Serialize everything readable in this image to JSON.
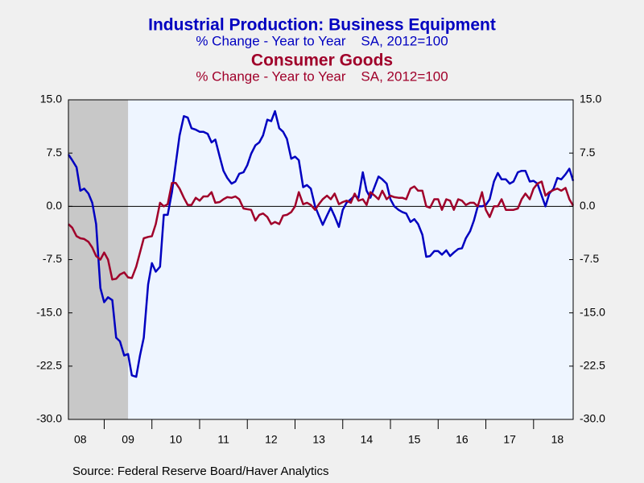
{
  "chart_data": {
    "type": "line",
    "title": "Industrial Production: Business Equipment",
    "subtitle": "% Change - Year to Year    SA, 2012=100",
    "title2": "Consumer Goods",
    "subtitle2": "% Change - Year to Year    SA, 2012=100",
    "source": "Source:  Federal Reserve Board/Haver Analytics",
    "x": [
      2008.25,
      2008.33,
      2008.42,
      2008.5,
      2008.58,
      2008.67,
      2008.75,
      2008.83,
      2008.92,
      2009.0,
      2009.08,
      2009.17,
      2009.25,
      2009.33,
      2009.42,
      2009.5,
      2009.58,
      2009.67,
      2009.75,
      2009.83,
      2009.92,
      2010.0,
      2010.08,
      2010.17,
      2010.25,
      2010.33,
      2010.42,
      2010.5,
      2010.58,
      2010.67,
      2010.75,
      2010.83,
      2010.92,
      2011.0,
      2011.08,
      2011.17,
      2011.25,
      2011.33,
      2011.42,
      2011.5,
      2011.58,
      2011.67,
      2011.75,
      2011.83,
      2011.92,
      2012.0,
      2012.08,
      2012.17,
      2012.25,
      2012.33,
      2012.42,
      2012.5,
      2012.58,
      2012.67,
      2012.75,
      2012.83,
      2012.92,
      2013.0,
      2013.08,
      2013.17,
      2013.25,
      2013.33,
      2013.42,
      2013.5,
      2013.58,
      2013.67,
      2013.75,
      2013.83,
      2013.92,
      2014.0,
      2014.08,
      2014.17,
      2014.25,
      2014.33,
      2014.42,
      2014.5,
      2014.58,
      2014.67,
      2014.75,
      2014.83,
      2014.92,
      2015.0,
      2015.08,
      2015.17,
      2015.25,
      2015.33,
      2015.42,
      2015.5,
      2015.58,
      2015.67,
      2015.75,
      2015.83,
      2015.92,
      2016.0,
      2016.08,
      2016.17,
      2016.25,
      2016.33,
      2016.42,
      2016.5,
      2016.58,
      2016.67,
      2016.75,
      2016.83,
      2016.92,
      2017.0,
      2017.08,
      2017.17,
      2017.25,
      2017.33,
      2017.42,
      2017.5,
      2017.58,
      2017.67,
      2017.75,
      2017.83,
      2017.92,
      2018.0,
      2018.08,
      2018.17,
      2018.25,
      2018.33,
      2018.42,
      2018.5,
      2018.58,
      2018.67,
      2018.75,
      2018.83
    ],
    "series": [
      {
        "name": "Business Equipment",
        "color": "#0000c0",
        "values": [
          7.3,
          6.5,
          5.5,
          2.2,
          2.5,
          1.8,
          0.5,
          -2.5,
          -11.5,
          -13.5,
          -12.8,
          -13.2,
          -18.5,
          -19,
          -21,
          -20.8,
          -23.8,
          -24,
          -21,
          -18.5,
          -11,
          -8,
          -9.2,
          -8.5,
          -1.2,
          -1.2,
          2,
          6,
          10,
          12.7,
          12.5,
          11,
          10.8,
          10.5,
          10.5,
          10.2,
          9,
          9.4,
          7,
          5,
          4,
          3.2,
          3.5,
          4.6,
          4.8,
          5.8,
          7.4,
          8.6,
          9,
          10,
          12.2,
          12,
          13.4,
          11,
          10.5,
          9.5,
          6.7,
          7,
          6.5,
          2.7,
          3,
          2.5,
          0,
          -1.3,
          -2.6,
          -1.3,
          -0.2,
          -1.4,
          -2.9,
          -0.5,
          0.5,
          1,
          1.5,
          1.2,
          4.8,
          2.2,
          1.2,
          2.8,
          4.2,
          3.8,
          3.2,
          1,
          0,
          -0.5,
          -0.8,
          -1,
          -2.2,
          -1.8,
          -2.5,
          -4,
          -7.1,
          -7,
          -6.3,
          -6.3,
          -6.8,
          -6.2,
          -7,
          -6.5,
          -6,
          -5.9,
          -4.5,
          -3.5,
          -2,
          0,
          0,
          0.2,
          1,
          3.5,
          4.7,
          3.8,
          3.8,
          3.2,
          3.5,
          4.8,
          5,
          5,
          3.5,
          3.6,
          3.2,
          1.5,
          0,
          1.8,
          2.5,
          4,
          3.8,
          4.5,
          5.3,
          3.6
        ]
      },
      {
        "name": "Consumer Goods",
        "color": "#a0002a",
        "values": [
          -2.5,
          -3,
          -4.2,
          -4.5,
          -4.6,
          -5,
          -5.8,
          -7,
          -7.5,
          -6.5,
          -7.5,
          -10.3,
          -10.2,
          -9.6,
          -9.3,
          -10,
          -10.1,
          -8.5,
          -6.5,
          -4.5,
          -4.3,
          -4.2,
          -2.5,
          0.5,
          0,
          0.3,
          3.3,
          3.3,
          2.5,
          1.2,
          0.2,
          0.2,
          1.2,
          0.8,
          1.4,
          1.4,
          2,
          0.5,
          0.6,
          1,
          1.3,
          1.2,
          1.4,
          1,
          -0.3,
          -0.4,
          -0.5,
          -2,
          -1.2,
          -1,
          -1.5,
          -2.5,
          -2.2,
          -2.5,
          -1.3,
          -1.2,
          -0.8,
          0,
          2,
          0.3,
          0.5,
          0.2,
          -0.5,
          0.3,
          1,
          1.5,
          1,
          1.8,
          0.3,
          0.6,
          0.8,
          0.5,
          1.8,
          0.8,
          1,
          0.2,
          2,
          1.5,
          1,
          2.2,
          1,
          1.5,
          1.3,
          1.2,
          1.2,
          1,
          2.5,
          2.8,
          2.2,
          2.2,
          0,
          -0.2,
          1,
          1,
          -0.5,
          1,
          0.8,
          -0.5,
          1,
          0.8,
          0.2,
          0.5,
          0.5,
          0,
          2,
          -0.5,
          -1.5,
          0,
          0,
          1,
          -0.5,
          -0.5,
          -0.5,
          -0.3,
          1,
          1.8,
          1,
          2.5,
          3.2,
          3.5,
          1.5,
          2,
          2.3,
          2.5,
          2.2,
          2.6,
          1,
          0.1
        ]
      }
    ],
    "xlim": [
      2008.25,
      2018.83
    ],
    "xticks": [
      {
        "value": 2008.5,
        "label": "08"
      },
      {
        "value": 2009.5,
        "label": "09"
      },
      {
        "value": 2010.5,
        "label": "10"
      },
      {
        "value": 2011.5,
        "label": "11"
      },
      {
        "value": 2012.5,
        "label": "12"
      },
      {
        "value": 2013.5,
        "label": "13"
      },
      {
        "value": 2014.5,
        "label": "14"
      },
      {
        "value": 2015.5,
        "label": "15"
      },
      {
        "value": 2016.5,
        "label": "16"
      },
      {
        "value": 2017.5,
        "label": "17"
      },
      {
        "value": 2018.5,
        "label": "18"
      }
    ],
    "ylim": [
      -30,
      15
    ],
    "yticks": [
      {
        "value": 15,
        "label": "15.0"
      },
      {
        "value": 7.5,
        "label": "7.5"
      },
      {
        "value": 0,
        "label": "0.0"
      },
      {
        "value": -7.5,
        "label": "-7.5"
      },
      {
        "value": -15,
        "label": "-15.0"
      },
      {
        "value": -22.5,
        "label": "-22.5"
      },
      {
        "value": -30,
        "label": "-30.0"
      }
    ],
    "y2lim": [
      -30,
      15
    ],
    "y2ticks": [
      {
        "value": 15,
        "label": "15.0"
      },
      {
        "value": 7.5,
        "label": "7.5"
      },
      {
        "value": 0,
        "label": "0.0"
      },
      {
        "value": -7.5,
        "label": "-7.5"
      },
      {
        "value": -15,
        "label": "-15.0"
      },
      {
        "value": -22.5,
        "label": "-22.5"
      },
      {
        "value": -30,
        "label": "-30.0"
      }
    ],
    "shaded": [
      2008.25,
      2009.5
    ]
  }
}
